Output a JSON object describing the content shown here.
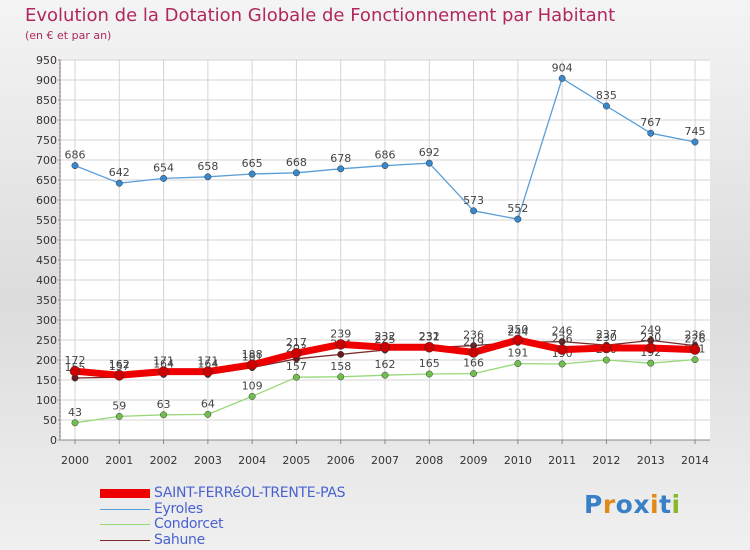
{
  "chart_data": {
    "type": "line",
    "title": "Evolution de la Dotation Globale de Fonctionnement par Habitant",
    "subtitle": "(en € et par an)",
    "xlabel": "",
    "ylabel": "",
    "ylim": [
      0,
      950
    ],
    "y_ticks": [
      0,
      50,
      100,
      150,
      200,
      250,
      300,
      350,
      400,
      450,
      500,
      550,
      600,
      650,
      700,
      750,
      800,
      850,
      900,
      950
    ],
    "categories": [
      "2000",
      "2001",
      "2002",
      "2003",
      "2004",
      "2005",
      "2006",
      "2007",
      "2008",
      "2009",
      "2010",
      "2011",
      "2012",
      "2013",
      "2014"
    ],
    "grid": true,
    "legend_position": "bottom-left",
    "series": [
      {
        "name": "Eyroles",
        "color": "#5a9ed8",
        "marker": "#3a88cc",
        "values": [
          686,
          642,
          654,
          658,
          665,
          668,
          678,
          686,
          692,
          573,
          552,
          904,
          835,
          767,
          745
        ]
      },
      {
        "name": "Condorcet",
        "color": "#98d878",
        "marker": "#70c050",
        "values": [
          43,
          59,
          63,
          64,
          109,
          157,
          158,
          162,
          165,
          166,
          191,
          190,
          200,
          192,
          201
        ]
      },
      {
        "name": "Sahune",
        "color": "#7a2a2a",
        "marker": "#6a1a1a",
        "values": [
          155,
          157,
          164,
          164,
          181,
          203,
          214,
          225,
          231,
          236,
          244,
          246,
          237,
          249,
          236
        ]
      },
      {
        "name": "SAINT-FERRéOL-TRENTE-PAS",
        "color": "#ee0000",
        "marker": "#cc0000",
        "values": [
          172,
          162,
          171,
          171,
          188,
          217,
          239,
          232,
          232,
          219,
          250,
          226,
          230,
          230,
          226
        ]
      }
    ]
  },
  "legend": [
    {
      "label": "SAINT-FERRéOL-TRENTE-PAS",
      "color": "#ee0000"
    },
    {
      "label": "Eyroles",
      "color": "#5a9ed8"
    },
    {
      "label": "Condorcet",
      "color": "#98d878"
    },
    {
      "label": "Sahune",
      "color": "#7a2a2a"
    }
  ],
  "logo": {
    "text": "Proxiti",
    "letters": [
      {
        "ch": "P",
        "color": "#3a80c8"
      },
      {
        "ch": "r",
        "color": "#e08a1a"
      },
      {
        "ch": "o",
        "color": "#3a80c8"
      },
      {
        "ch": "x",
        "color": "#3a80c8"
      },
      {
        "ch": "i",
        "color": "#e08a1a"
      },
      {
        "ch": "t",
        "color": "#3a80c8"
      },
      {
        "ch": "i",
        "color": "#88b82a"
      }
    ]
  }
}
